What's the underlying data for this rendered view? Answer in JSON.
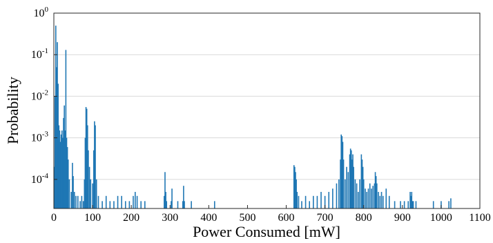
{
  "chart_data": {
    "type": "bar",
    "title": "",
    "xlabel": "Power Consumed [mW]",
    "ylabel": "Probability",
    "xlim": [
      0,
      1100
    ],
    "ylim_log10": [
      -4.7,
      0
    ],
    "yscale": "log",
    "grid": "y-major",
    "legend": "none",
    "color": "#1f77b4",
    "x_ticks": [
      {
        "value": 0,
        "label": "0"
      },
      {
        "value": 100,
        "label": "100"
      },
      {
        "value": 200,
        "label": "200"
      },
      {
        "value": 300,
        "label": "300"
      },
      {
        "value": 400,
        "label": "400"
      },
      {
        "value": 500,
        "label": "500"
      },
      {
        "value": 600,
        "label": "600"
      },
      {
        "value": 700,
        "label": "700"
      },
      {
        "value": 800,
        "label": "800"
      },
      {
        "value": 900,
        "label": "900"
      },
      {
        "value": 1000,
        "label": "1000"
      },
      {
        "value": 1100,
        "label": "1100"
      }
    ],
    "y_ticks": [
      {
        "exp": 0,
        "base": "10",
        "sup": "0"
      },
      {
        "exp": -1,
        "base": "10",
        "sup": "-1"
      },
      {
        "exp": -2,
        "base": "10",
        "sup": "-2"
      },
      {
        "exp": -3,
        "base": "10",
        "sup": "-3"
      },
      {
        "exp": -4,
        "base": "10",
        "sup": "-4"
      }
    ],
    "series": [
      {
        "x": [
          1,
          3,
          5,
          7,
          9,
          11,
          13,
          15,
          17,
          19,
          21,
          23,
          25,
          27,
          29,
          31,
          33,
          35,
          37,
          40,
          45,
          48,
          50,
          53,
          57,
          62,
          68,
          72,
          76,
          79,
          81,
          83,
          85,
          87,
          89,
          92,
          95,
          100,
          103,
          105,
          107,
          110,
          115,
          125,
          135,
          145,
          155,
          165,
          175,
          185,
          195,
          205,
          210,
          215,
          225,
          235,
          285,
          287,
          289,
          291,
          303,
          305,
          320,
          333,
          335,
          337,
          355,
          415,
          620,
          622,
          624,
          626,
          628,
          632,
          640,
          650,
          660,
          670,
          680,
          690,
          700,
          710,
          720,
          730,
          736,
          740,
          742,
          744,
          746,
          748,
          752,
          756,
          760,
          764,
          766,
          768,
          770,
          772,
          774,
          778,
          782,
          786,
          790,
          794,
          796,
          798,
          800,
          804,
          808,
          812,
          816,
          820,
          824,
          828,
          830,
          832,
          834,
          838,
          842,
          846,
          850,
          858,
          866,
          880,
          895,
          905,
          915,
          920,
          922,
          924,
          926,
          928,
          935,
          980,
          1000,
          1020,
          1025
        ],
        "y": [
          0.0002,
          0.01,
          0.5,
          0.05,
          0.2,
          0.02,
          0.002,
          0.0015,
          0.0008,
          0.0012,
          0.0015,
          0.001,
          0.003,
          0.006,
          0.0015,
          0.13,
          0.001,
          0.0006,
          0.0003,
          0.0001,
          5e-05,
          0.00025,
          0.00012,
          5e-05,
          4e-05,
          4e-05,
          3e-05,
          4e-05,
          3e-05,
          0.0001,
          0.001,
          0.0055,
          0.005,
          0.002,
          0.0005,
          0.0002,
          0.0001,
          8e-05,
          0.0005,
          0.0025,
          0.002,
          0.0001,
          4e-05,
          3e-05,
          4e-05,
          3e-05,
          3e-05,
          4e-05,
          4e-05,
          3e-05,
          3e-05,
          4e-05,
          5e-05,
          4e-05,
          3e-05,
          3e-05,
          4e-05,
          0.00015,
          5e-05,
          3e-05,
          3e-05,
          6e-05,
          3e-05,
          3e-05,
          7e-05,
          3e-05,
          3e-05,
          3e-05,
          0.00022,
          0.0002,
          0.00015,
          0.0001,
          5e-05,
          4e-05,
          3e-05,
          4e-05,
          3e-05,
          4e-05,
          4e-05,
          5e-05,
          4e-05,
          5e-05,
          6e-05,
          8e-05,
          0.0001,
          0.0003,
          0.0012,
          0.0011,
          0.0008,
          0.0003,
          0.0001,
          0.0002,
          0.00015,
          0.0004,
          0.00055,
          0.0005,
          0.0003,
          0.0004,
          0.0002,
          0.0001,
          8e-05,
          5e-05,
          0.0001,
          0.0004,
          0.0003,
          0.0002,
          0.0001,
          6e-05,
          5e-05,
          6e-05,
          8e-05,
          6e-05,
          7e-05,
          8e-05,
          0.00015,
          0.00012,
          8e-05,
          5e-05,
          4e-05,
          5e-05,
          4e-05,
          6e-05,
          4e-05,
          3e-05,
          3e-05,
          3e-05,
          3e-05,
          5e-05,
          4e-05,
          5e-05,
          3e-05,
          3e-05,
          3e-05,
          3e-05,
          3e-05,
          3e-05,
          3.5e-05
        ]
      }
    ]
  }
}
